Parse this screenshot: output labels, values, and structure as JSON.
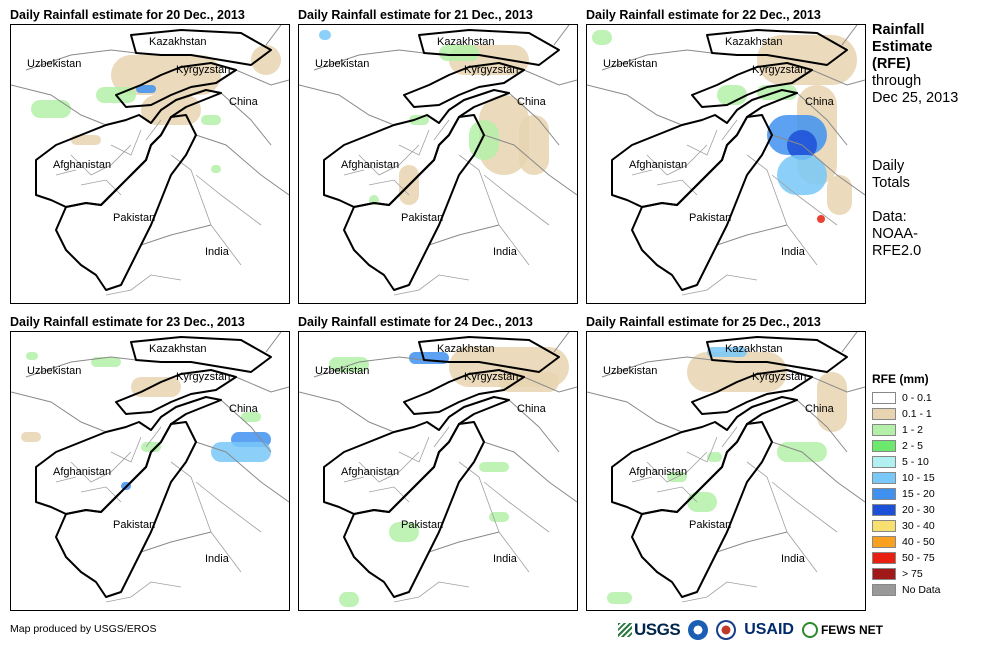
{
  "panels": [
    {
      "title": "Daily Rainfall estimate for 20 Dec., 2013"
    },
    {
      "title": "Daily Rainfall estimate for 21 Dec., 2013"
    },
    {
      "title": "Daily Rainfall estimate for 22 Dec., 2013"
    },
    {
      "title": "Daily Rainfall estimate for 23 Dec., 2013"
    },
    {
      "title": "Daily Rainfall estimate for 24 Dec., 2013"
    },
    {
      "title": "Daily Rainfall estimate for 25 Dec., 2013"
    }
  ],
  "country_labels": {
    "kazakhstan": "Kazakhstan",
    "uzbekistan": "Uzbekistan",
    "kyrgyzstan": "Kyrgyzstan",
    "china": "China",
    "afghanistan": "Afghanistan",
    "pakistan": "Pakistan",
    "india": "India"
  },
  "side": {
    "title_line1": "Rainfall",
    "title_line2": "Estimate",
    "title_line3": "(RFE)",
    "through": "through",
    "through_date": "Dec 25, 2013",
    "daily_line1": "Daily",
    "daily_line2": "Totals",
    "data_label": "Data:",
    "data_line1": "NOAA-",
    "data_line2": "RFE2.0"
  },
  "legend": {
    "title": "RFE (mm)",
    "items": [
      {
        "label": "0 - 0.1",
        "color": "#ffffff"
      },
      {
        "label": "0.1 - 1",
        "color": "#e8d4b0"
      },
      {
        "label": "1 - 2",
        "color": "#b4f0a8"
      },
      {
        "label": "2 - 5",
        "color": "#6ce86c"
      },
      {
        "label": "5 - 10",
        "color": "#b0f0f0"
      },
      {
        "label": "10 - 15",
        "color": "#78c8f8"
      },
      {
        "label": "15 - 20",
        "color": "#4090f0"
      },
      {
        "label": "20 - 30",
        "color": "#1c50d8"
      },
      {
        "label": "30 - 40",
        "color": "#f8e070"
      },
      {
        "label": "40 - 50",
        "color": "#f8a020"
      },
      {
        "label": "50 - 75",
        "color": "#e82010"
      },
      {
        "label": "> 75",
        "color": "#a01818"
      },
      {
        "label": "No Data",
        "color": "#999999"
      }
    ]
  },
  "footer": {
    "credit": "Map produced by USGS/EROS",
    "logos": {
      "usgs": "USGS",
      "usaid": "USAID",
      "fews": "FEWS NET"
    }
  }
}
